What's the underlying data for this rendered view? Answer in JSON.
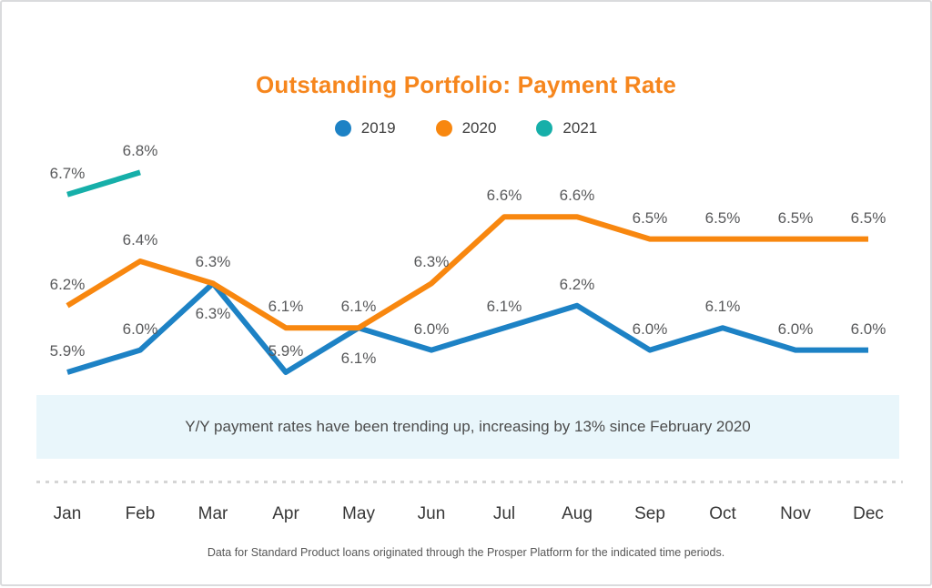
{
  "card": {
    "background": "#ffffff",
    "border_color": "#dadbdd"
  },
  "chart_data": {
    "type": "line",
    "title": "Outstanding Portfolio: Payment Rate",
    "title_color": "#f6861d",
    "unit": "%",
    "categories": [
      "Jan",
      "Feb",
      "Mar",
      "Apr",
      "May",
      "Jun",
      "Jul",
      "Aug",
      "Sep",
      "Oct",
      "Nov",
      "Dec"
    ],
    "series": [
      {
        "name": "2019",
        "color": "#1d82c5",
        "values": [
          5.9,
          6.0,
          6.3,
          5.9,
          6.1,
          6.0,
          6.1,
          6.2,
          6.0,
          6.1,
          6.0,
          6.0
        ]
      },
      {
        "name": "2020",
        "color": "#f8870f",
        "values": [
          6.2,
          6.4,
          6.3,
          6.1,
          6.1,
          6.3,
          6.6,
          6.6,
          6.5,
          6.5,
          6.5,
          6.5
        ]
      },
      {
        "name": "2021",
        "color": "#16afa9",
        "values": [
          6.7,
          6.8
        ]
      }
    ],
    "value_range": [
      5.9,
      6.8
    ],
    "data_labels": true,
    "data_label_color": "#58595b",
    "grid": false,
    "legend_position": "top",
    "annotation": {
      "text": "Y/Y payment rates have been trending up, increasing by 13% since February 2020",
      "background": "#e9f6fb"
    },
    "footnote": "Data for Standard Product loans originated through the Prosper Platform for the indicated time periods."
  }
}
